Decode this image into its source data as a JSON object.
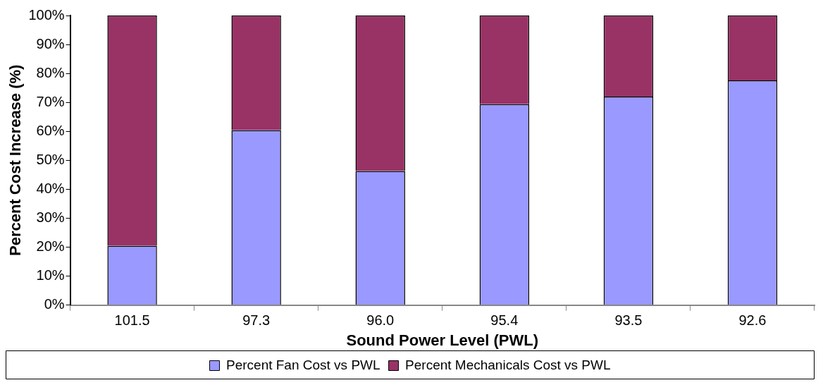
{
  "chart_data": {
    "type": "bar",
    "stacked": true,
    "xlabel": "Sound Power Level (PWL)",
    "ylabel": "Percent Cost Increase (%)",
    "categories": [
      "101.5",
      "97.3",
      "96.0",
      "95.4",
      "93.5",
      "92.6"
    ],
    "series": [
      {
        "name": "Percent Fan Cost vs PWL",
        "color": "#9999ff",
        "values": [
          20.5,
          60.4,
          46.3,
          69.4,
          72.0,
          77.6
        ]
      },
      {
        "name": "Percent Mechanicals Cost vs PWL",
        "color": "#993366",
        "values": [
          79.5,
          39.6,
          53.7,
          30.6,
          28.0,
          22.4
        ]
      }
    ],
    "ylim": [
      0,
      100
    ],
    "yticks": [
      {
        "value": 0,
        "label": "0%"
      },
      {
        "value": 10,
        "label": "10%"
      },
      {
        "value": 20,
        "label": "20%"
      },
      {
        "value": 30,
        "label": "30%"
      },
      {
        "value": 40,
        "label": "40%"
      },
      {
        "value": 50,
        "label": "50%"
      },
      {
        "value": 60,
        "label": "60%"
      },
      {
        "value": 70,
        "label": "70%"
      },
      {
        "value": 80,
        "label": "80%"
      },
      {
        "value": 90,
        "label": "90%"
      },
      {
        "value": 100,
        "label": "100%"
      }
    ],
    "grid": false,
    "legend": "bottom"
  }
}
